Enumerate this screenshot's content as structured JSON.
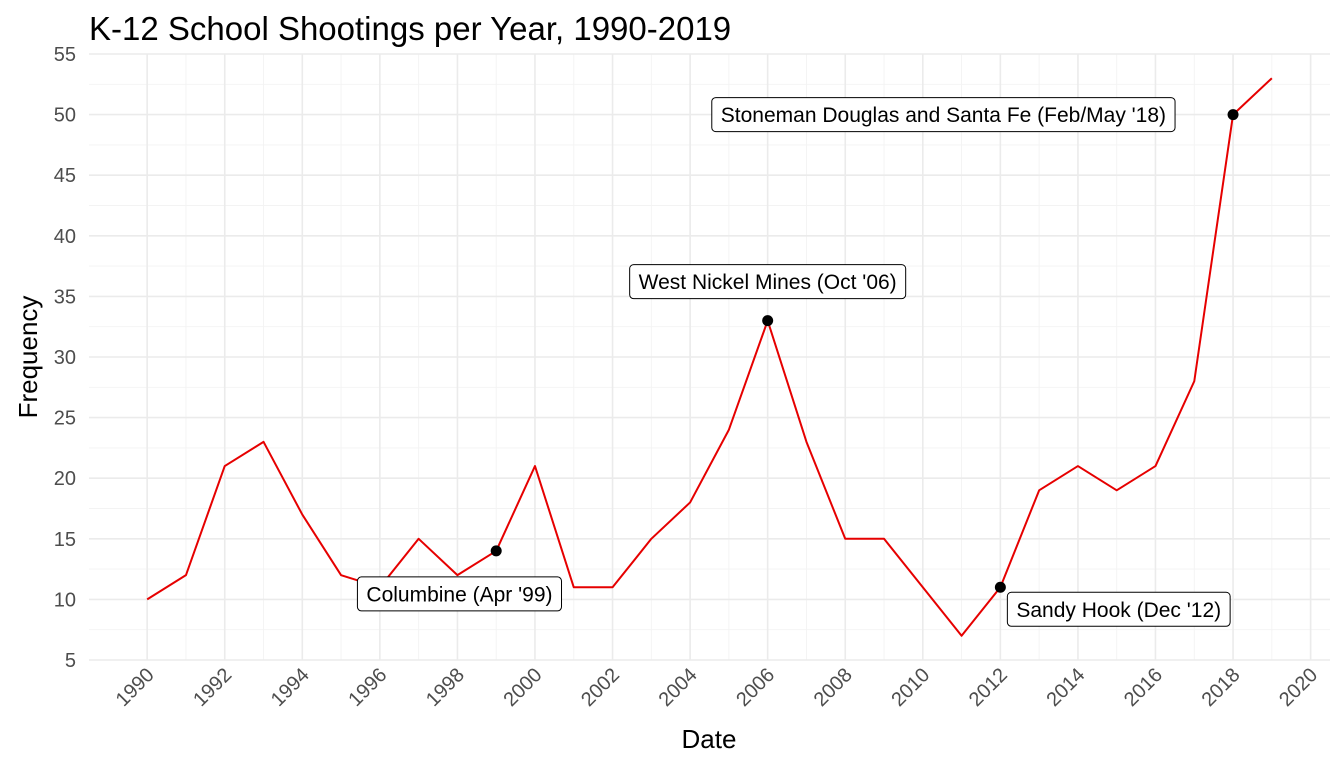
{
  "chart_data": {
    "type": "line",
    "title": "K-12 School Shootings per Year, 1990-2019",
    "xlabel": "Date",
    "ylabel": "Frequency",
    "xlim": [
      1988.5,
      2020.5
    ],
    "ylim": [
      5,
      55
    ],
    "x_ticks": [
      1990,
      1992,
      1994,
      1996,
      1998,
      2000,
      2002,
      2004,
      2006,
      2008,
      2010,
      2012,
      2014,
      2016,
      2018,
      2020
    ],
    "y_ticks": [
      5,
      10,
      15,
      20,
      25,
      30,
      35,
      40,
      45,
      50,
      55
    ],
    "grid": true,
    "legend": "none",
    "line_color": "#e60000",
    "series": [
      {
        "x": [
          1990,
          1991,
          1992,
          1993,
          1994,
          1995,
          1996,
          1997,
          1998,
          1999,
          2000,
          2001,
          2002,
          2003,
          2004,
          2005,
          2006,
          2007,
          2008,
          2009,
          2010,
          2011,
          2012,
          2013,
          2014,
          2015,
          2016,
          2017,
          2018,
          2019
        ],
        "y": [
          10,
          12,
          21,
          23,
          17,
          12,
          11,
          15,
          12,
          14,
          21,
          11,
          11,
          15,
          18,
          24,
          33,
          23,
          15,
          15,
          11,
          7,
          11,
          19,
          21,
          19,
          21,
          28,
          50,
          53
        ]
      }
    ],
    "annotations": [
      {
        "label": "Columbine (Apr '99)",
        "x": 1999,
        "y": 14,
        "placement": "below-left"
      },
      {
        "label": "West Nickel Mines (Oct '06)",
        "x": 2006,
        "y": 33,
        "placement": "above"
      },
      {
        "label": "Sandy Hook (Dec '12)",
        "x": 2012,
        "y": 11,
        "placement": "below-right"
      },
      {
        "label": "Stoneman Douglas and Santa Fe (Feb/May '18)",
        "x": 2018,
        "y": 50,
        "placement": "left"
      }
    ]
  }
}
